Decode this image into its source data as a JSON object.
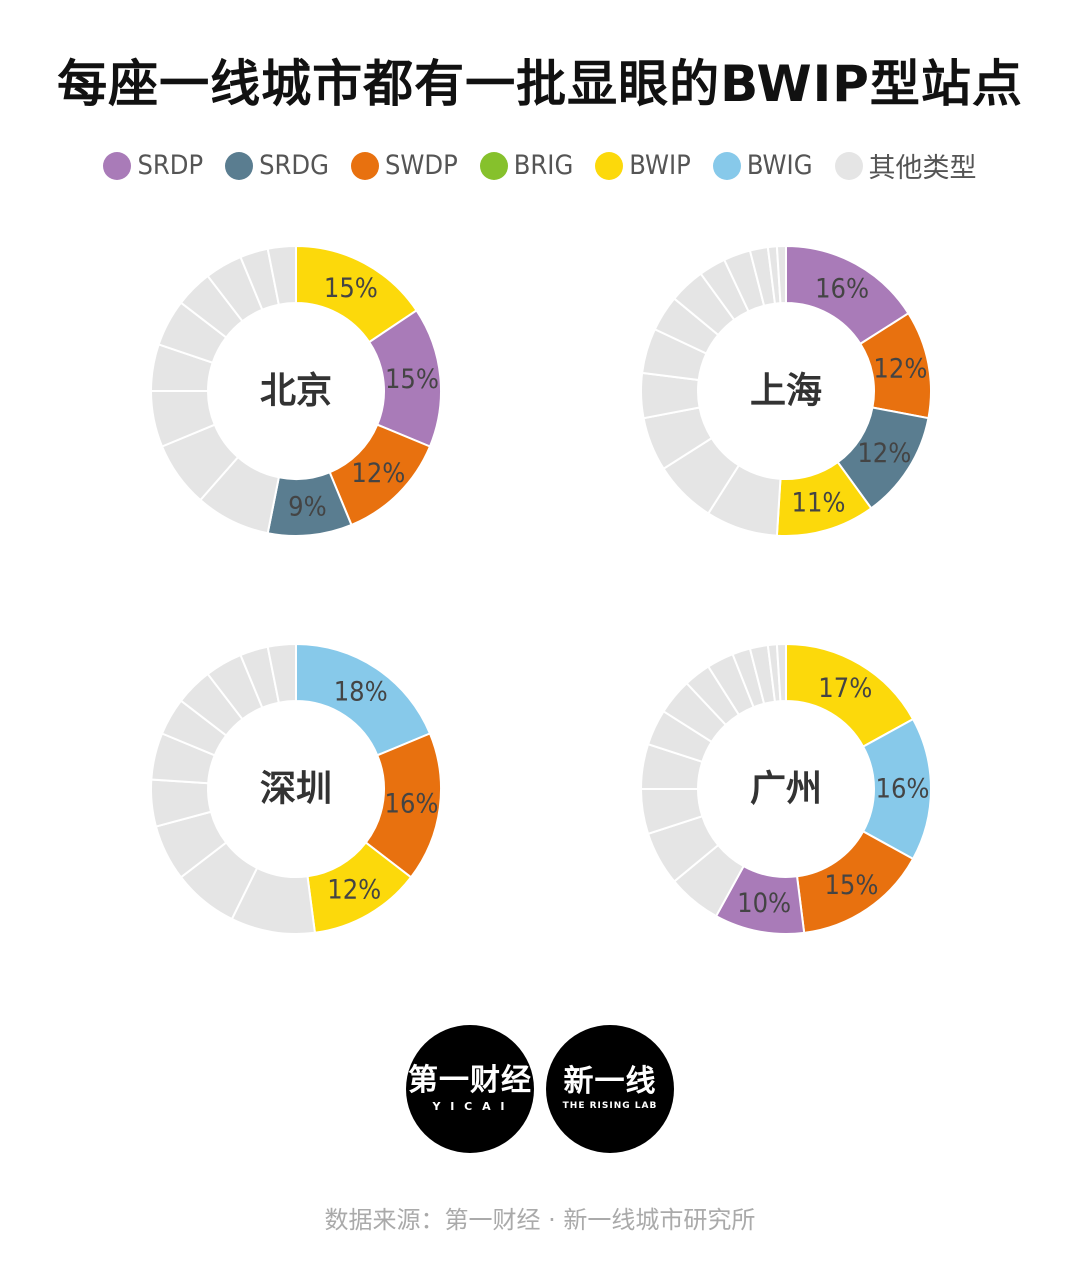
{
  "title": "每座一线城市都有一批显眼的BWIP型站点",
  "legend": [
    {
      "label": "SRDP",
      "color": "#a97bb8"
    },
    {
      "label": "SRDG",
      "color": "#5a7d90"
    },
    {
      "label": "SWDP",
      "color": "#e8710f"
    },
    {
      "label": "BRIG",
      "color": "#86c12c"
    },
    {
      "label": "BWIP",
      "color": "#fcd90b"
    },
    {
      "label": "BWIG",
      "color": "#87c9ea"
    },
    {
      "label": "其他类型",
      "color": "#e5e5e5"
    }
  ],
  "chart_data": [
    {
      "type": "pie",
      "center_label": "北京",
      "slices": [
        {
          "category": "BWIP",
          "value": 15,
          "label": "15%",
          "color": "#fcd90b"
        },
        {
          "category": "SRDP",
          "value": 15,
          "label": "15%",
          "color": "#a97bb8"
        },
        {
          "category": "SWDP",
          "value": 12,
          "label": "12%",
          "color": "#e8710f"
        },
        {
          "category": "SRDG",
          "value": 9,
          "label": "9%",
          "color": "#5a7d90"
        },
        {
          "category": "其他类型",
          "value": 8,
          "color": "#e5e5e5"
        },
        {
          "category": "其他类型",
          "value": 7,
          "color": "#e5e5e5"
        },
        {
          "category": "其他类型",
          "value": 6,
          "color": "#e5e5e5"
        },
        {
          "category": "其他类型",
          "value": 5,
          "color": "#e5e5e5"
        },
        {
          "category": "其他类型",
          "value": 5,
          "color": "#e5e5e5"
        },
        {
          "category": "其他类型",
          "value": 4,
          "color": "#e5e5e5"
        },
        {
          "category": "其他类型",
          "value": 4,
          "color": "#e5e5e5"
        },
        {
          "category": "其他类型",
          "value": 3,
          "color": "#e5e5e5"
        },
        {
          "category": "其他类型",
          "value": 3,
          "color": "#e5e5e5"
        }
      ]
    },
    {
      "type": "pie",
      "center_label": "上海",
      "slices": [
        {
          "category": "SRDP",
          "value": 16,
          "label": "16%",
          "color": "#a97bb8"
        },
        {
          "category": "SWDP",
          "value": 12,
          "label": "12%",
          "color": "#e8710f"
        },
        {
          "category": "SRDG",
          "value": 12,
          "label": "12%",
          "color": "#5a7d90"
        },
        {
          "category": "BWIP",
          "value": 11,
          "label": "11%",
          "color": "#fcd90b"
        },
        {
          "category": "其他类型",
          "value": 8,
          "color": "#e5e5e5"
        },
        {
          "category": "其他类型",
          "value": 7,
          "color": "#e5e5e5"
        },
        {
          "category": "其他类型",
          "value": 6,
          "color": "#e5e5e5"
        },
        {
          "category": "其他类型",
          "value": 5,
          "color": "#e5e5e5"
        },
        {
          "category": "其他类型",
          "value": 5,
          "color": "#e5e5e5"
        },
        {
          "category": "其他类型",
          "value": 4,
          "color": "#e5e5e5"
        },
        {
          "category": "其他类型",
          "value": 4,
          "color": "#e5e5e5"
        },
        {
          "category": "其他类型",
          "value": 3,
          "color": "#e5e5e5"
        },
        {
          "category": "其他类型",
          "value": 3,
          "color": "#e5e5e5"
        },
        {
          "category": "其他类型",
          "value": 2,
          "color": "#e5e5e5"
        },
        {
          "category": "其他类型",
          "value": 1,
          "color": "#e5e5e5"
        },
        {
          "category": "其他类型",
          "value": 1,
          "color": "#e5e5e5"
        }
      ]
    },
    {
      "type": "pie",
      "center_label": "深圳",
      "slices": [
        {
          "category": "BWIG",
          "value": 18,
          "label": "18%",
          "color": "#87c9ea"
        },
        {
          "category": "SWDP",
          "value": 16,
          "label": "16%",
          "color": "#e8710f"
        },
        {
          "category": "BWIP",
          "value": 12,
          "label": "12%",
          "color": "#fcd90b"
        },
        {
          "category": "其他类型",
          "value": 9,
          "color": "#e5e5e5"
        },
        {
          "category": "其他类型",
          "value": 7,
          "color": "#e5e5e5"
        },
        {
          "category": "其他类型",
          "value": 6,
          "color": "#e5e5e5"
        },
        {
          "category": "其他类型",
          "value": 5,
          "color": "#e5e5e5"
        },
        {
          "category": "其他类型",
          "value": 5,
          "color": "#e5e5e5"
        },
        {
          "category": "其他类型",
          "value": 4,
          "color": "#e5e5e5"
        },
        {
          "category": "其他类型",
          "value": 4,
          "color": "#e5e5e5"
        },
        {
          "category": "其他类型",
          "value": 4,
          "color": "#e5e5e5"
        },
        {
          "category": "其他类型",
          "value": 3,
          "color": "#e5e5e5"
        },
        {
          "category": "其他类型",
          "value": 3,
          "color": "#e5e5e5"
        }
      ]
    },
    {
      "type": "pie",
      "center_label": "广州",
      "slices": [
        {
          "category": "BWIP",
          "value": 17,
          "label": "17%",
          "color": "#fcd90b"
        },
        {
          "category": "BWIG",
          "value": 16,
          "label": "16%",
          "color": "#87c9ea"
        },
        {
          "category": "SWDP",
          "value": 15,
          "label": "15%",
          "color": "#e8710f"
        },
        {
          "category": "SRDP",
          "value": 10,
          "label": "10%",
          "color": "#a97bb8"
        },
        {
          "category": "其他类型",
          "value": 6,
          "color": "#e5e5e5"
        },
        {
          "category": "其他类型",
          "value": 6,
          "color": "#e5e5e5"
        },
        {
          "category": "其他类型",
          "value": 5,
          "color": "#e5e5e5"
        },
        {
          "category": "其他类型",
          "value": 5,
          "color": "#e5e5e5"
        },
        {
          "category": "其他类型",
          "value": 4,
          "color": "#e5e5e5"
        },
        {
          "category": "其他类型",
          "value": 4,
          "color": "#e5e5e5"
        },
        {
          "category": "其他类型",
          "value": 3,
          "color": "#e5e5e5"
        },
        {
          "category": "其他类型",
          "value": 3,
          "color": "#e5e5e5"
        },
        {
          "category": "其他类型",
          "value": 2,
          "color": "#e5e5e5"
        },
        {
          "category": "其他类型",
          "value": 2,
          "color": "#e5e5e5"
        },
        {
          "category": "其他类型",
          "value": 1,
          "color": "#e5e5e5"
        },
        {
          "category": "其他类型",
          "value": 1,
          "color": "#e5e5e5"
        }
      ]
    }
  ],
  "logos": {
    "yicai_main": "第一财经",
    "yicai_sub": "Y I C A I",
    "risinglab_main": "新一线",
    "risinglab_sub": "THE RISING LAB"
  },
  "source": "数据来源：第一财经 · 新一线城市研究所"
}
